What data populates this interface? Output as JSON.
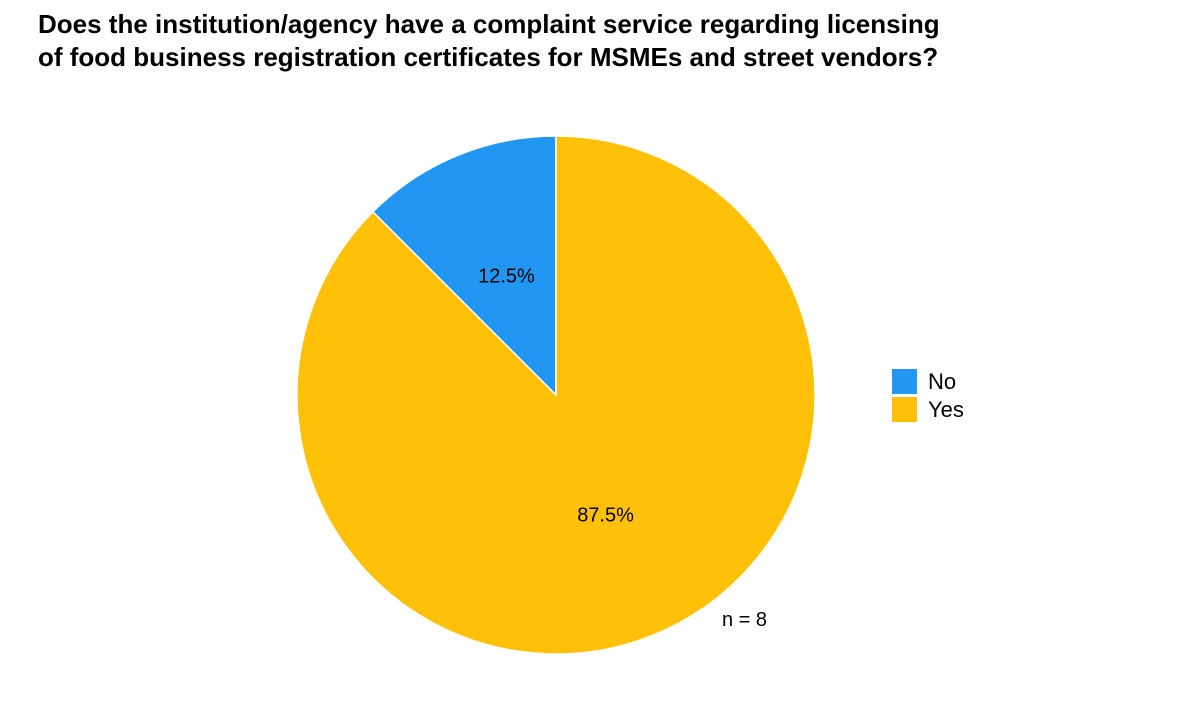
{
  "chart_data": {
    "type": "pie",
    "title": [
      "Does the institution/agency have a complaint service regarding licensing",
      "of food business registration certificates for MSMEs and street vendors?"
    ],
    "slices": [
      {
        "label": "No",
        "value": 12.5,
        "value_label": "12.5%",
        "color": "#2196F3"
      },
      {
        "label": "Yes",
        "value": 87.5,
        "value_label": "87.5%",
        "color": "#FFC107"
      }
    ],
    "legend_position": "right",
    "annotation": "n = 8",
    "start": "top",
    "direction": "counter-clockwise"
  }
}
